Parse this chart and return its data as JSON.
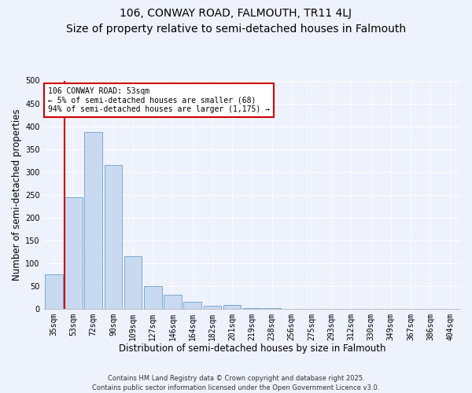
{
  "title": "106, CONWAY ROAD, FALMOUTH, TR11 4LJ",
  "subtitle": "Size of property relative to semi-detached houses in Falmouth",
  "xlabel": "Distribution of semi-detached houses by size in Falmouth",
  "ylabel": "Number of semi-detached properties",
  "bar_labels": [
    "35sqm",
    "53sqm",
    "72sqm",
    "90sqm",
    "109sqm",
    "127sqm",
    "146sqm",
    "164sqm",
    "182sqm",
    "201sqm",
    "219sqm",
    "238sqm",
    "256sqm",
    "275sqm",
    "293sqm",
    "312sqm",
    "330sqm",
    "349sqm",
    "367sqm",
    "386sqm",
    "404sqm"
  ],
  "bar_values": [
    75,
    245,
    388,
    315,
    115,
    50,
    30,
    15,
    7,
    8,
    2,
    1,
    0,
    0,
    0,
    0,
    0,
    0,
    0,
    0,
    0
  ],
  "bar_color": "#c9daf0",
  "bar_edge_color": "#6a9fd0",
  "highlight_bar_index": 1,
  "highlight_color": "#cc0000",
  "ylim": [
    0,
    500
  ],
  "yticks": [
    0,
    50,
    100,
    150,
    200,
    250,
    300,
    350,
    400,
    450,
    500
  ],
  "annotation_title": "106 CONWAY ROAD: 53sqm",
  "annotation_line1": "← 5% of semi-detached houses are smaller (68)",
  "annotation_line2": "94% of semi-detached houses are larger (1,175) →",
  "annotation_box_color": "#ffffff",
  "annotation_box_edge": "#cc0000",
  "footer_line1": "Contains HM Land Registry data © Crown copyright and database right 2025.",
  "footer_line2": "Contains public sector information licensed under the Open Government Licence v3.0.",
  "bg_color": "#eef2fc",
  "title_fontsize": 10,
  "subtitle_fontsize": 9,
  "axis_label_fontsize": 8.5,
  "tick_fontsize": 7,
  "footer_fontsize": 6
}
